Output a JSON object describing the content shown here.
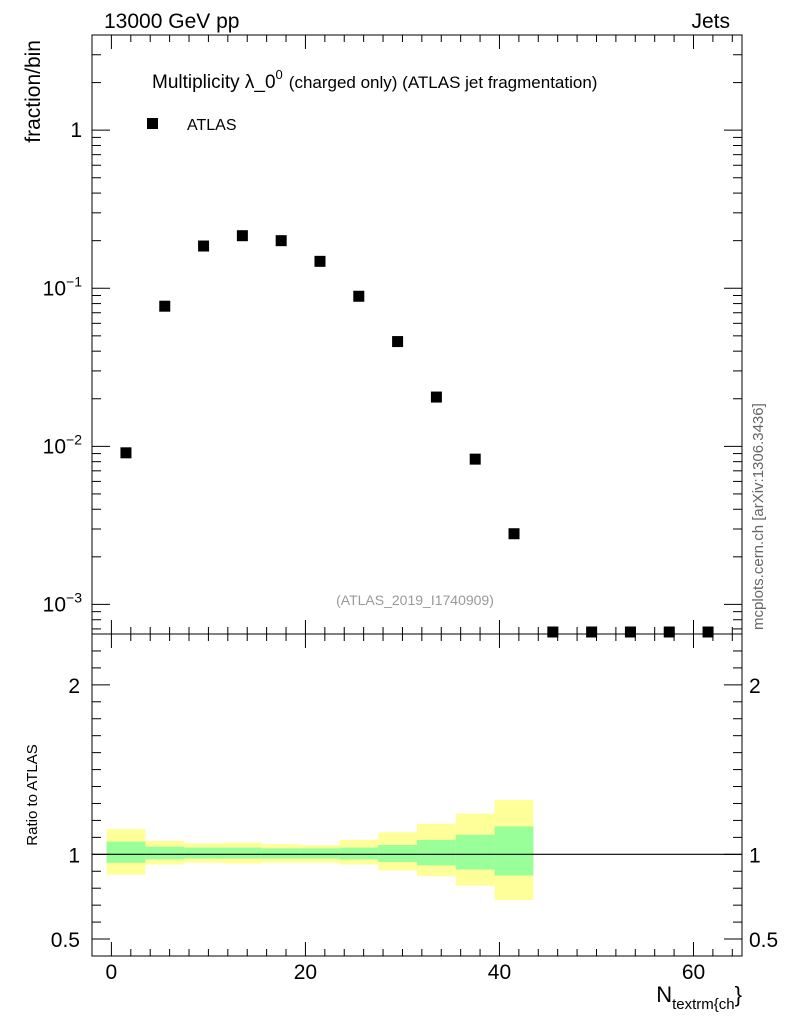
{
  "header": {
    "left": "13000 GeV pp",
    "right": "Jets"
  },
  "watermark": "mcplots.cern.ch [arXiv:1306.3436]",
  "chart_data": [
    {
      "type": "scatter",
      "title_main": "Multiplicity λ_0",
      "title_sup": "0",
      "title_rest": "(charged only) (ATLAS jet fragmentation)",
      "ylabel": "fraction/bin",
      "yscale": "log",
      "ylim": [
        0.00065,
        4.0
      ],
      "xlim": [
        -2,
        65
      ],
      "y_ticks": [
        {
          "value": 1,
          "base": "1",
          "exp": ""
        },
        {
          "value": 0.1,
          "base": "10",
          "exp": "−1"
        },
        {
          "value": 0.01,
          "base": "10",
          "exp": "−2"
        },
        {
          "value": 0.001,
          "base": "10",
          "exp": "−3"
        }
      ],
      "legend": {
        "placement": "top-left",
        "entries": [
          {
            "name": "ATLAS",
            "marker": "square"
          }
        ]
      },
      "analysis_label": "(ATLAS_2019_I1740909)",
      "series": [
        {
          "name": "ATLAS",
          "x": [
            1.5,
            5.5,
            9.5,
            13.5,
            17.5,
            21.5,
            25.5,
            29.5,
            33.5,
            37.5,
            41.5,
            45.5,
            49.5,
            53.5,
            57.5,
            61.5
          ],
          "y": [
            0.0091,
            0.077,
            0.185,
            0.215,
            0.2,
            0.148,
            0.089,
            0.046,
            0.0205,
            0.0083,
            0.0028,
            0.00064,
            0.00064,
            0.00064,
            0.00064,
            0.00064
          ]
        }
      ]
    },
    {
      "type": "area",
      "ylabel": "Ratio to ATLAS",
      "xlabel_main": "N",
      "xlabel_sub": "textrm{ch",
      "xlabel_tail": "}",
      "ylim": [
        0.4,
        2.3
      ],
      "xlim": [
        -2,
        65
      ],
      "y_ticks": [
        0.5,
        1,
        2
      ],
      "y_tick_labels": [
        "0.5",
        "1",
        "2"
      ],
      "x_ticks": [
        0,
        20,
        40,
        60
      ],
      "x_tick_labels": [
        "0",
        "20",
        "40",
        "60"
      ],
      "reference_line": 1,
      "bands": [
        {
          "x0": -0.5,
          "x1": 3.5,
          "green": [
            0.95,
            1.075
          ],
          "yellow": [
            0.88,
            1.15
          ]
        },
        {
          "x0": 3.5,
          "x1": 7.5,
          "green": [
            0.97,
            1.045
          ],
          "yellow": [
            0.94,
            1.08
          ]
        },
        {
          "x0": 7.5,
          "x1": 11.5,
          "green": [
            0.975,
            1.04
          ],
          "yellow": [
            0.95,
            1.065
          ]
        },
        {
          "x0": 11.5,
          "x1": 15.5,
          "green": [
            0.975,
            1.04
          ],
          "yellow": [
            0.945,
            1.07
          ]
        },
        {
          "x0": 15.5,
          "x1": 19.5,
          "green": [
            0.975,
            1.035
          ],
          "yellow": [
            0.95,
            1.06
          ]
        },
        {
          "x0": 19.5,
          "x1": 23.5,
          "green": [
            0.975,
            1.035
          ],
          "yellow": [
            0.95,
            1.055
          ]
        },
        {
          "x0": 23.5,
          "x1": 27.5,
          "green": [
            0.97,
            1.04
          ],
          "yellow": [
            0.94,
            1.085
          ]
        },
        {
          "x0": 27.5,
          "x1": 31.5,
          "green": [
            0.955,
            1.055
          ],
          "yellow": [
            0.905,
            1.13
          ]
        },
        {
          "x0": 31.5,
          "x1": 35.5,
          "green": [
            0.935,
            1.085
          ],
          "yellow": [
            0.87,
            1.18
          ]
        },
        {
          "x0": 35.5,
          "x1": 39.5,
          "green": [
            0.91,
            1.115
          ],
          "yellow": [
            0.815,
            1.24
          ]
        },
        {
          "x0": 39.5,
          "x1": 43.5,
          "green": [
            0.875,
            1.165
          ],
          "yellow": [
            0.73,
            1.32
          ]
        }
      ]
    }
  ]
}
